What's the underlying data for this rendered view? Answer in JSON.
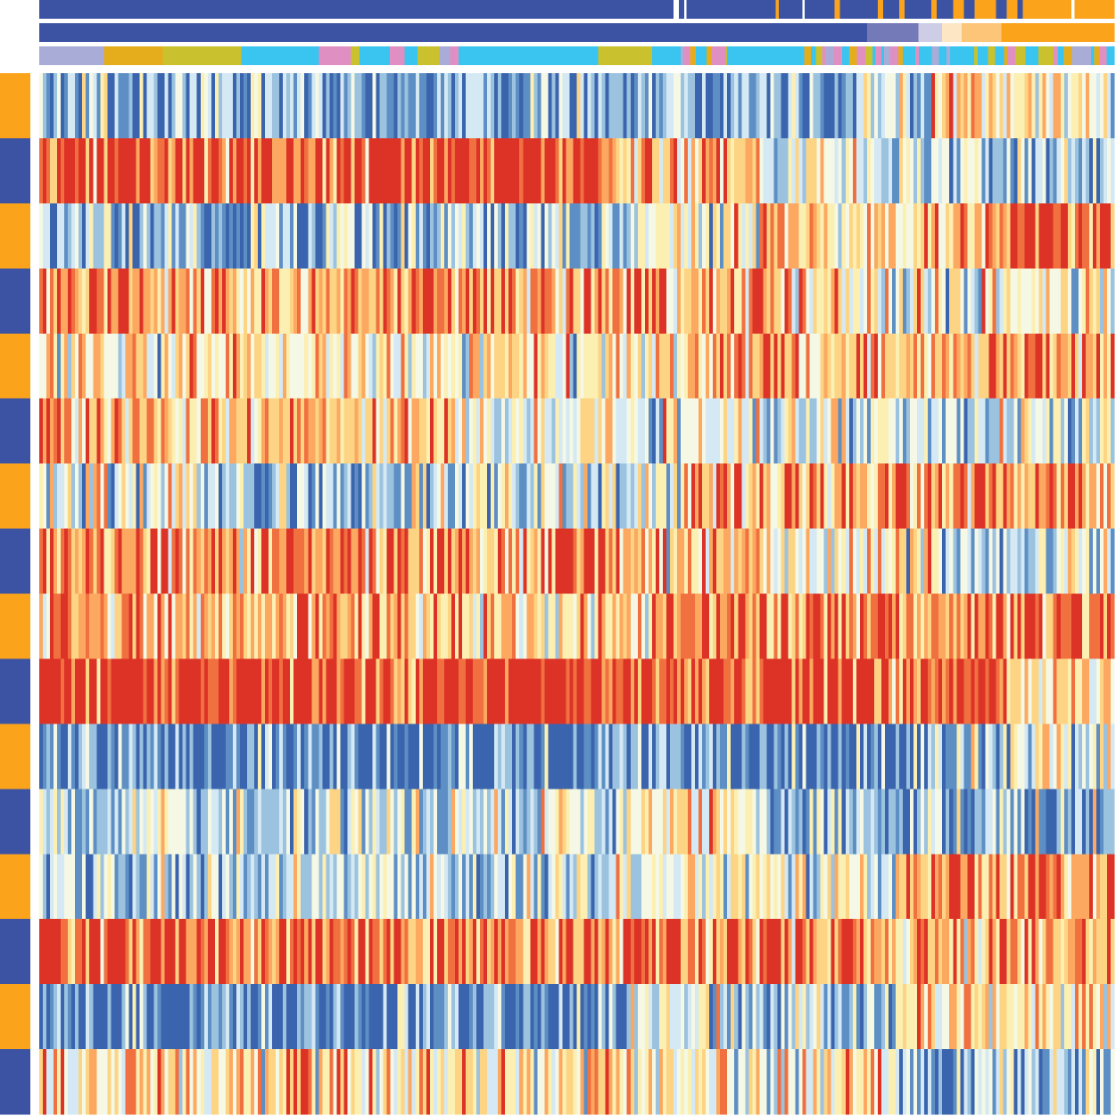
{
  "chart_data": {
    "type": "heatmap",
    "title": "",
    "xlabel": "",
    "ylabel": "",
    "grid": false,
    "legend": "none",
    "n_rows": 16,
    "n_cols": 300,
    "value_range": [
      -1,
      1
    ],
    "colormap": [
      "#3a64ad",
      "#5e8fc4",
      "#9bc2de",
      "#d4e9f4",
      "#f4f8e4",
      "#fcefb2",
      "#fdd484",
      "#fca860",
      "#f0703f",
      "#dd3327"
    ],
    "row_group_colors": {
      "A": "#fba31b",
      "B": "#3c53a4"
    },
    "row_groups": [
      "A",
      "B",
      "A",
      "B",
      "A",
      "B",
      "A",
      "B",
      "A",
      "B",
      "A",
      "B",
      "A",
      "B",
      "A",
      "B"
    ],
    "row_profiles": [
      [
        {
          "to": 0.76,
          "mean": -0.55
        },
        {
          "to": 0.83,
          "mean": -0.3
        },
        {
          "to": 1.0,
          "mean": 0.1
        }
      ],
      [
        {
          "to": 0.53,
          "mean": 0.8
        },
        {
          "to": 0.67,
          "mean": 0.5
        },
        {
          "to": 0.78,
          "mean": 0.0
        },
        {
          "to": 1.0,
          "mean": -0.4
        }
      ],
      [
        {
          "to": 0.55,
          "mean": -0.45
        },
        {
          "to": 0.67,
          "mean": 0.05
        },
        {
          "to": 0.9,
          "mean": 0.35
        },
        {
          "to": 1.0,
          "mean": 0.75
        }
      ],
      [
        {
          "to": 0.55,
          "mean": 0.55
        },
        {
          "to": 0.68,
          "mean": 0.6
        },
        {
          "to": 0.78,
          "mean": 0.25
        },
        {
          "to": 1.0,
          "mean": -0.1
        }
      ],
      [
        {
          "to": 0.6,
          "mean": 0.1
        },
        {
          "to": 1.0,
          "mean": 0.45
        }
      ],
      [
        {
          "to": 0.38,
          "mean": 0.35
        },
        {
          "to": 0.62,
          "mean": -0.05
        },
        {
          "to": 1.0,
          "mean": -0.25
        }
      ],
      [
        {
          "to": 0.19,
          "mean": -0.15
        },
        {
          "to": 0.33,
          "mean": -0.5
        },
        {
          "to": 0.6,
          "mean": -0.2
        },
        {
          "to": 1.0,
          "mean": 0.45
        }
      ],
      [
        {
          "to": 0.55,
          "mean": 0.55
        },
        {
          "to": 0.67,
          "mean": 0.4
        },
        {
          "to": 0.85,
          "mean": 0.0
        },
        {
          "to": 1.0,
          "mean": -0.35
        }
      ],
      [
        {
          "to": 0.4,
          "mean": 0.4
        },
        {
          "to": 0.57,
          "mean": 0.2
        },
        {
          "to": 1.0,
          "mean": 0.6
        }
      ],
      [
        {
          "to": 0.9,
          "mean": 0.95
        },
        {
          "to": 1.0,
          "mean": 0.05
        }
      ],
      [
        {
          "to": 0.85,
          "mean": -0.75
        },
        {
          "to": 1.0,
          "mean": -0.25
        }
      ],
      [
        {
          "to": 0.55,
          "mean": -0.25
        },
        {
          "to": 0.67,
          "mean": 0.1
        },
        {
          "to": 1.0,
          "mean": -0.55
        }
      ],
      [
        {
          "to": 0.55,
          "mean": -0.3
        },
        {
          "to": 0.8,
          "mean": -0.1
        },
        {
          "to": 1.0,
          "mean": 0.6
        }
      ],
      [
        {
          "to": 0.7,
          "mean": 0.7
        },
        {
          "to": 1.0,
          "mean": 0.45
        }
      ],
      [
        {
          "to": 0.55,
          "mean": -0.7
        },
        {
          "to": 0.8,
          "mean": -0.3
        },
        {
          "to": 1.0,
          "mean": 0.2
        }
      ],
      [
        {
          "to": 0.55,
          "mean": 0.2
        },
        {
          "to": 0.8,
          "mean": 0.05
        },
        {
          "to": 1.0,
          "mean": -0.4
        }
      ]
    ],
    "column_annotations": [
      {
        "name": "",
        "segments": [
          {
            "to": 0.59,
            "color": "#3c53a4"
          },
          {
            "to": 0.595,
            "color": "#ffffff"
          },
          {
            "to": 0.6,
            "color": "#3c53a4"
          },
          {
            "to": 0.602,
            "color": "#ffffff"
          },
          {
            "to": 0.685,
            "color": "#3c53a4"
          },
          {
            "to": 0.688,
            "color": "#fba31b"
          },
          {
            "to": 0.71,
            "color": "#3c53a4"
          },
          {
            "to": 0.712,
            "color": "#ffffff"
          },
          {
            "to": 0.74,
            "color": "#3c53a4"
          },
          {
            "to": 0.745,
            "color": "#fba31b"
          },
          {
            "to": 0.78,
            "color": "#3c53a4"
          },
          {
            "to": 0.785,
            "color": "#fba31b"
          },
          {
            "to": 0.8,
            "color": "#3c53a4"
          },
          {
            "to": 0.805,
            "color": "#fba31b"
          },
          {
            "to": 0.83,
            "color": "#3c53a4"
          },
          {
            "to": 0.835,
            "color": "#fba31b"
          },
          {
            "to": 0.85,
            "color": "#3c53a4"
          },
          {
            "to": 0.86,
            "color": "#fba31b"
          },
          {
            "to": 0.87,
            "color": "#3c53a4"
          },
          {
            "to": 0.875,
            "color": "#fba31b"
          },
          {
            "to": 0.89,
            "color": "#fba31b"
          },
          {
            "to": 0.9,
            "color": "#3c53a4"
          },
          {
            "to": 0.91,
            "color": "#fba31b"
          },
          {
            "to": 0.915,
            "color": "#3c53a4"
          },
          {
            "to": 0.96,
            "color": "#fba31b"
          },
          {
            "to": 0.963,
            "color": "#ffffff"
          },
          {
            "to": 1.0,
            "color": "#fba31b"
          }
        ]
      },
      {
        "name": "",
        "segments": [
          {
            "to": 0.77,
            "color": "#3c53a4"
          },
          {
            "to": 0.818,
            "color": "#7479b8"
          },
          {
            "to": 0.84,
            "color": "#cdcde6"
          },
          {
            "to": 0.858,
            "color": "#fde6c4"
          },
          {
            "to": 0.895,
            "color": "#fdc578"
          },
          {
            "to": 1.0,
            "color": "#fba31b"
          }
        ]
      },
      {
        "name": "",
        "segments": [
          {
            "to": 0.06,
            "color": "#a9acd6"
          },
          {
            "to": 0.115,
            "color": "#e5ad1c"
          },
          {
            "to": 0.188,
            "color": "#c9c12e"
          },
          {
            "to": 0.26,
            "color": "#3ac4f0"
          },
          {
            "to": 0.29,
            "color": "#e08fc2"
          },
          {
            "to": 0.298,
            "color": "#c9c12e"
          },
          {
            "to": 0.326,
            "color": "#3ac4f0"
          },
          {
            "to": 0.34,
            "color": "#e08fc2"
          },
          {
            "to": 0.352,
            "color": "#3ac4f0"
          },
          {
            "to": 0.372,
            "color": "#c9c12e"
          },
          {
            "to": 0.382,
            "color": "#a9acd6"
          },
          {
            "to": 0.39,
            "color": "#e08fc2"
          },
          {
            "to": 0.39,
            "color": "#3ac4f0"
          },
          {
            "to": 0.52,
            "color": "#3ac4f0"
          },
          {
            "to": 0.57,
            "color": "#c9c12e"
          },
          {
            "to": 0.59,
            "color": "#3ac4f0"
          },
          {
            "to": 0.64,
            "color": "#mix"
          },
          {
            "to": 0.7,
            "color": "#3ac4f0"
          },
          {
            "to": 1.0,
            "color": "#mix"
          }
        ]
      }
    ],
    "mix_palette": [
      "#3ac4f0",
      "#e08fc2",
      "#c9c12e",
      "#e5ad1c",
      "#a9acd6",
      "#3ac4f0",
      "#3ac4f0"
    ]
  }
}
